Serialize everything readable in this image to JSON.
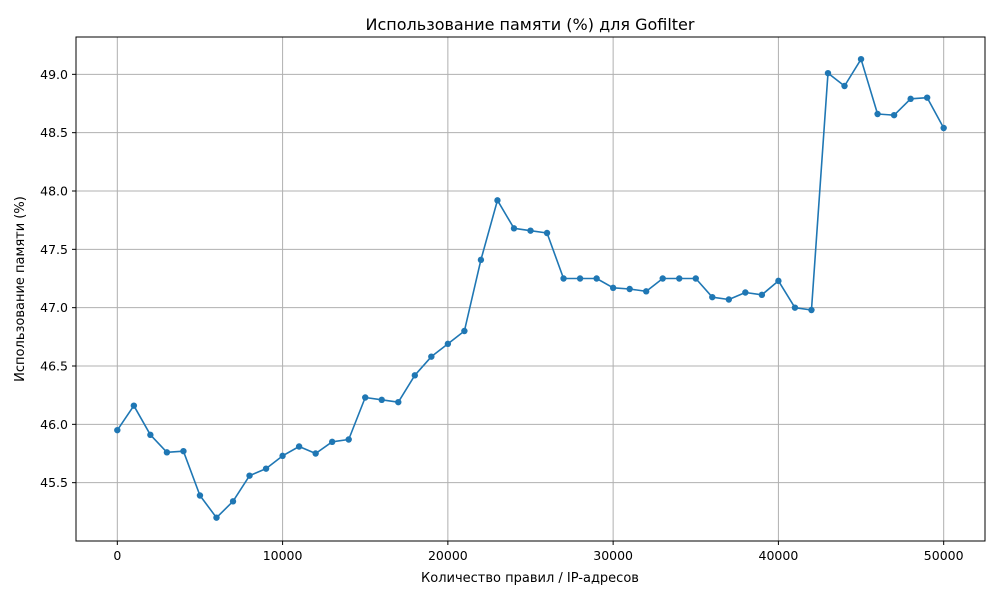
{
  "chart_data": {
    "type": "line",
    "title": "Использование памяти (%) для Gofilter",
    "xlabel": "Количество правил / IP-адресов",
    "ylabel": "Использование памяти (%)",
    "xlim": [
      -2500,
      52500
    ],
    "ylim": [
      45.0,
      49.32
    ],
    "xticks": [
      0,
      10000,
      20000,
      30000,
      40000,
      50000
    ],
    "xtick_labels": [
      "0",
      "10000",
      "20000",
      "30000",
      "40000",
      "50000"
    ],
    "yticks": [
      45.5,
      46.0,
      46.5,
      47.0,
      47.5,
      48.0,
      48.5,
      49.0
    ],
    "ytick_labels": [
      "45.5",
      "46.0",
      "46.5",
      "47.0",
      "47.5",
      "48.0",
      "48.5",
      "49.0"
    ],
    "grid": true,
    "color": "#1f77b4",
    "series": [
      {
        "x": [
          0,
          1000,
          2000,
          3000,
          4000,
          5000,
          6000,
          7000,
          8000,
          9000,
          10000,
          11000,
          12000,
          13000,
          14000,
          15000,
          16000,
          17000,
          18000,
          19000,
          20000,
          21000,
          22000,
          23000,
          24000,
          25000,
          26000,
          27000,
          28000,
          29000,
          30000,
          31000,
          32000,
          33000,
          34000,
          35000,
          36000,
          37000,
          38000,
          39000,
          40000,
          41000,
          42000,
          43000,
          44000,
          45000,
          46000,
          47000,
          48000,
          49000,
          50000
        ],
        "y": [
          45.95,
          46.16,
          45.91,
          45.76,
          45.77,
          45.39,
          45.2,
          45.34,
          45.56,
          45.62,
          45.73,
          45.81,
          45.75,
          45.85,
          45.87,
          46.23,
          46.21,
          46.19,
          46.42,
          46.58,
          46.69,
          46.8,
          47.41,
          47.92,
          47.68,
          47.66,
          47.64,
          47.25,
          47.25,
          47.25,
          47.17,
          47.16,
          47.14,
          47.25,
          47.25,
          47.25,
          47.09,
          47.07,
          47.13,
          47.11,
          47.23,
          47.0,
          46.98,
          49.01,
          48.9,
          49.13,
          48.66,
          48.65,
          48.79,
          48.8,
          48.54
        ]
      }
    ]
  }
}
